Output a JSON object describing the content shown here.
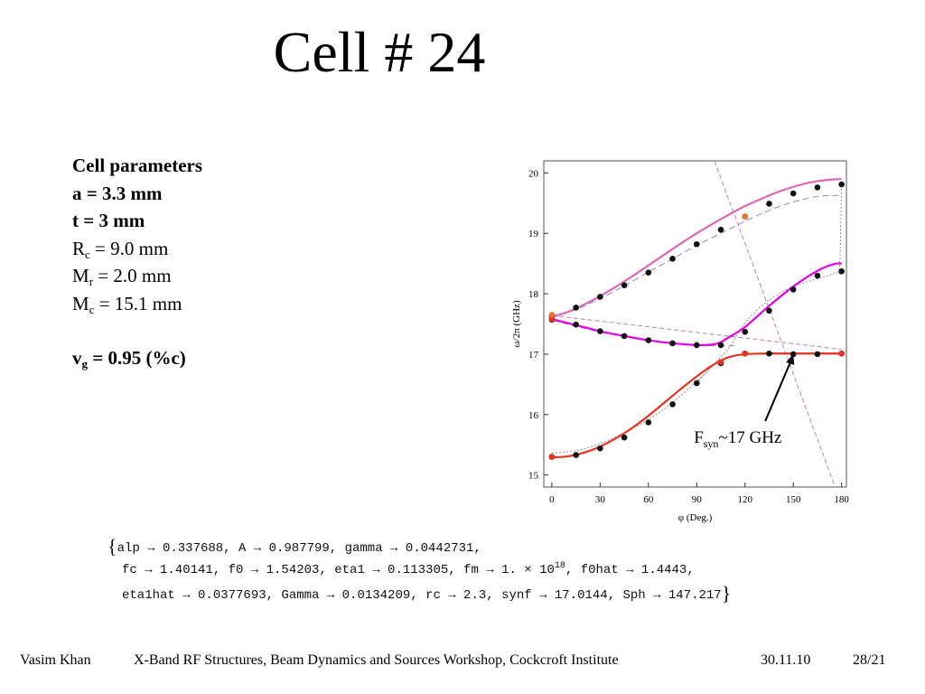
{
  "slide": {
    "title": "Cell # 24"
  },
  "parameters": {
    "heading": "Cell parameters",
    "a": "a = 3.3 mm",
    "t": "t = 3 mm",
    "rc_sym": "R",
    "rc_sub": "c",
    "rc_val": " = 9.0 mm",
    "mr_sym": "M",
    "mr_sub": "r",
    "mr_val": " = 2.0 mm",
    "mc_sym": "M",
    "mc_sub": "c",
    "mc_val": " = 15.1 mm",
    "vg_sym": "v",
    "vg_sub": "g",
    "vg_val": " = 0.95 (%c)"
  },
  "fit_results": {
    "line1": "alp → 0.337688, A → 0.987799, gamma → 0.0442731,",
    "line2_a": "fc → 1.40141, f0 → 1.54203, eta1 → 0.113305, fm → 1. × 10",
    "line2_exp": "18",
    "line2_b": ", f0hat → 1.4443,",
    "line3": "eta1hat → 0.0377693, Gamma → 0.0134209, rc → 2.3, synf → 17.0144, Sph → 147.217",
    "brace_open": "{",
    "brace_close": "}"
  },
  "footer": {
    "author": "Vasim Khan",
    "event": "X-Band RF Structures, Beam Dynamics and Sources Workshop, Cockcroft Institute",
    "date": "30.11.10",
    "page": "28/21"
  },
  "chart_data": {
    "type": "line",
    "title": "",
    "xlabel": "φ (Deg.)",
    "ylabel": "ω/2π (GHz)",
    "xlim": [
      -5,
      183
    ],
    "ylim": [
      14.8,
      20.2
    ],
    "xticks": [
      0,
      30,
      60,
      90,
      120,
      150,
      180
    ],
    "yticks": [
      15,
      16,
      17,
      18,
      19,
      20
    ],
    "grid": false,
    "annotation": {
      "label_main": "F",
      "label_sub": "syn",
      "label_rest": "~17 GHz",
      "arrow_target": [
        150,
        17.0
      ]
    },
    "colors": {
      "upper_curve": "#e066b8",
      "middle_curve": "#e600e6",
      "lower_curve": "#e8321e",
      "dashed_model": "#8a8ad0",
      "light_line": "#c080b0",
      "dotted": "#9090a0",
      "points": "#111111",
      "red_points": "#e8321e",
      "orange_point": "#f07030"
    },
    "series": [
      {
        "role": "upper-fit",
        "style": "solid",
        "x": [
          0,
          10,
          20,
          30,
          40,
          50,
          60,
          70,
          80,
          90,
          100,
          110,
          120,
          130,
          140,
          150,
          160,
          170,
          180
        ],
        "y": [
          17.62,
          17.7,
          17.82,
          17.96,
          18.12,
          18.29,
          18.47,
          18.65,
          18.83,
          19.0,
          19.16,
          19.31,
          19.45,
          19.57,
          19.68,
          19.77,
          19.84,
          19.88,
          19.9
        ]
      },
      {
        "role": "upper-model",
        "style": "dashed",
        "x": [
          0,
          15,
          30,
          45,
          60,
          75,
          90,
          105,
          120,
          135,
          150,
          165,
          180
        ],
        "y": [
          17.6,
          17.74,
          17.92,
          18.13,
          18.36,
          18.58,
          18.8,
          19.0,
          19.2,
          19.38,
          19.52,
          19.61,
          19.63
        ]
      },
      {
        "role": "middle-fit",
        "style": "solid",
        "x": [
          0,
          15,
          30,
          45,
          60,
          75,
          90,
          100,
          105,
          110,
          120,
          135,
          150,
          165,
          175,
          180
        ],
        "y": [
          17.58,
          17.48,
          17.38,
          17.3,
          17.23,
          17.18,
          17.15,
          17.16,
          17.2,
          17.28,
          17.45,
          17.8,
          18.12,
          18.38,
          18.49,
          18.5
        ]
      },
      {
        "role": "middle-model",
        "style": "dashed",
        "x": [
          0,
          15,
          30,
          45,
          60,
          75,
          90,
          105,
          115
        ],
        "y": [
          17.56,
          17.46,
          17.37,
          17.29,
          17.23,
          17.18,
          17.15,
          17.14,
          17.14
        ]
      },
      {
        "role": "lower-fit",
        "style": "solid",
        "x": [
          0,
          10,
          20,
          30,
          40,
          50,
          60,
          70,
          80,
          90,
          100,
          110,
          120,
          135,
          150,
          165,
          180
        ],
        "y": [
          15.29,
          15.31,
          15.37,
          15.47,
          15.61,
          15.78,
          15.98,
          16.2,
          16.42,
          16.63,
          16.82,
          16.95,
          17.0,
          17.01,
          17.01,
          17.01,
          17.01
        ]
      },
      {
        "role": "lower-model",
        "style": "dotted",
        "x": [
          0,
          15,
          30,
          45,
          60,
          75,
          90,
          105,
          120,
          135,
          150,
          165,
          180
        ],
        "y": [
          15.36,
          15.4,
          15.52,
          15.7,
          15.92,
          16.2,
          16.55,
          16.9,
          17.0,
          17.02,
          17.02,
          17.02,
          17.02
        ]
      },
      {
        "role": "crossing-dotted",
        "style": "dotted",
        "x": [
          90,
          100,
          110,
          120,
          135,
          150,
          165,
          175,
          178,
          179,
          180
        ],
        "y": [
          16.52,
          16.82,
          17.1,
          17.52,
          17.9,
          18.12,
          18.25,
          18.33,
          18.38,
          18.6,
          19.8
        ]
      },
      {
        "role": "light-line-upper",
        "style": "dashed-light",
        "x": [
          0,
          180
        ],
        "y": [
          17.64,
          17.08
        ]
      },
      {
        "role": "light-line-steep",
        "style": "dashed-light",
        "x": [
          101,
          176
        ],
        "y": [
          20.2,
          14.8
        ]
      },
      {
        "role": "points-upper",
        "style": "points",
        "x": [
          0,
          15,
          30,
          45,
          60,
          75,
          90,
          105,
          120,
          135,
          150,
          165,
          180
        ],
        "y": [
          17.63,
          17.77,
          17.95,
          18.14,
          18.35,
          18.58,
          18.82,
          19.06,
          19.28,
          19.49,
          19.66,
          19.76,
          19.81
        ]
      },
      {
        "role": "points-middle",
        "style": "points",
        "x": [
          0,
          15,
          30,
          45,
          60,
          75,
          90,
          105,
          120,
          135,
          150,
          165,
          180
        ],
        "y": [
          17.57,
          17.49,
          17.38,
          17.3,
          17.23,
          17.18,
          17.15,
          17.15,
          17.37,
          17.72,
          18.07,
          18.3,
          18.37
        ]
      },
      {
        "role": "points-lower",
        "style": "points",
        "x": [
          0,
          15,
          30,
          45,
          60,
          75,
          90,
          105,
          120,
          135,
          150,
          165,
          180
        ],
        "y": [
          15.3,
          15.33,
          15.44,
          15.62,
          15.87,
          16.17,
          16.52,
          16.85,
          17.01,
          17.01,
          17.0,
          17.0,
          17.01
        ]
      },
      {
        "role": "points-red",
        "style": "points-red",
        "x": [
          0,
          0,
          105,
          120,
          180
        ],
        "y": [
          15.3,
          17.58,
          16.87,
          17.01,
          17.01
        ]
      },
      {
        "role": "points-orange",
        "style": "points-orange",
        "x": [
          0,
          120
        ],
        "y": [
          17.65,
          19.28
        ]
      }
    ]
  }
}
